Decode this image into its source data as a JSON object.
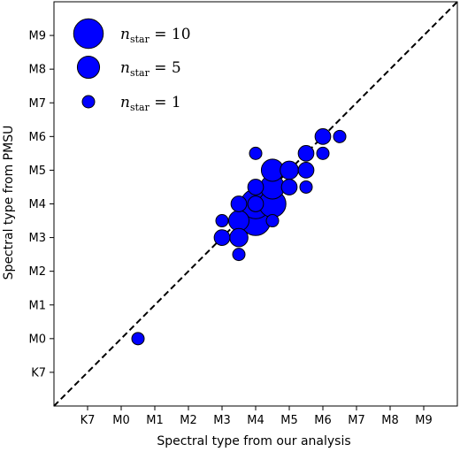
{
  "chart_data": {
    "type": "scatter",
    "xlabel": "Spectral type from our analysis",
    "ylabel": "Spectral type from PMSU",
    "x_ticks": [
      {
        "value": 0,
        "label": "K7"
      },
      {
        "value": 1,
        "label": "M0"
      },
      {
        "value": 2,
        "label": "M1"
      },
      {
        "value": 3,
        "label": "M2"
      },
      {
        "value": 4,
        "label": "M3"
      },
      {
        "value": 5,
        "label": "M4"
      },
      {
        "value": 6,
        "label": "M5"
      },
      {
        "value": 7,
        "label": "M6"
      },
      {
        "value": 8,
        "label": "M7"
      },
      {
        "value": 9,
        "label": "M8"
      },
      {
        "value": 10,
        "label": "M9"
      }
    ],
    "y_ticks": [
      {
        "value": 0,
        "label": "K7"
      },
      {
        "value": 1,
        "label": "M0"
      },
      {
        "value": 2,
        "label": "M1"
      },
      {
        "value": 3,
        "label": "M2"
      },
      {
        "value": 4,
        "label": "M3"
      },
      {
        "value": 5,
        "label": "M4"
      },
      {
        "value": 6,
        "label": "M5"
      },
      {
        "value": 7,
        "label": "M6"
      },
      {
        "value": 8,
        "label": "M7"
      },
      {
        "value": 9,
        "label": "M8"
      },
      {
        "value": 10,
        "label": "M9"
      }
    ],
    "xlim": [
      -1,
      11
    ],
    "ylim": [
      -1,
      11
    ],
    "grid": false,
    "reference_line": {
      "style": "dashed",
      "color": "#000000",
      "from": [
        -1,
        -1
      ],
      "to": [
        11,
        11
      ]
    },
    "marker_color": "#0000ff",
    "marker_edge": "#000000",
    "legend": {
      "placement": "top-left",
      "entries": [
        {
          "n": 10,
          "label_base": "n",
          "label_sub": "star",
          "label_rest": " = 10"
        },
        {
          "n": 5,
          "label_base": "n",
          "label_sub": "star",
          "label_rest": " = 5"
        },
        {
          "n": 1,
          "label_base": "n",
          "label_sub": "star",
          "label_rest": " = 1"
        }
      ]
    },
    "points": [
      {
        "x": 1.5,
        "y": 1.0,
        "n": 1
      },
      {
        "x": 4.0,
        "y": 4.5,
        "n": 1
      },
      {
        "x": 4.0,
        "y": 4.0,
        "n": 2
      },
      {
        "x": 4.5,
        "y": 4.0,
        "n": 3
      },
      {
        "x": 4.5,
        "y": 4.5,
        "n": 4
      },
      {
        "x": 4.5,
        "y": 5.0,
        "n": 2
      },
      {
        "x": 4.5,
        "y": 3.5,
        "n": 1
      },
      {
        "x": 5.0,
        "y": 5.0,
        "n": 2
      },
      {
        "x": 5.0,
        "y": 5.5,
        "n": 2
      },
      {
        "x": 5.0,
        "y": 4.5,
        "n": 10
      },
      {
        "x": 5.0,
        "y": 5.0,
        "n": 10
      },
      {
        "x": 5.0,
        "y": 6.5,
        "n": 1
      },
      {
        "x": 5.5,
        "y": 6.0,
        "n": 5
      },
      {
        "x": 5.5,
        "y": 5.5,
        "n": 6
      },
      {
        "x": 5.5,
        "y": 5.0,
        "n": 8
      },
      {
        "x": 5.5,
        "y": 4.5,
        "n": 1
      },
      {
        "x": 6.0,
        "y": 6.0,
        "n": 3
      },
      {
        "x": 6.0,
        "y": 5.5,
        "n": 2
      },
      {
        "x": 6.5,
        "y": 6.0,
        "n": 2
      },
      {
        "x": 6.5,
        "y": 6.5,
        "n": 2
      },
      {
        "x": 6.5,
        "y": 5.5,
        "n": 1
      },
      {
        "x": 7.0,
        "y": 7.0,
        "n": 2
      },
      {
        "x": 7.0,
        "y": 6.5,
        "n": 1
      },
      {
        "x": 7.5,
        "y": 7.0,
        "n": 1
      }
    ]
  }
}
